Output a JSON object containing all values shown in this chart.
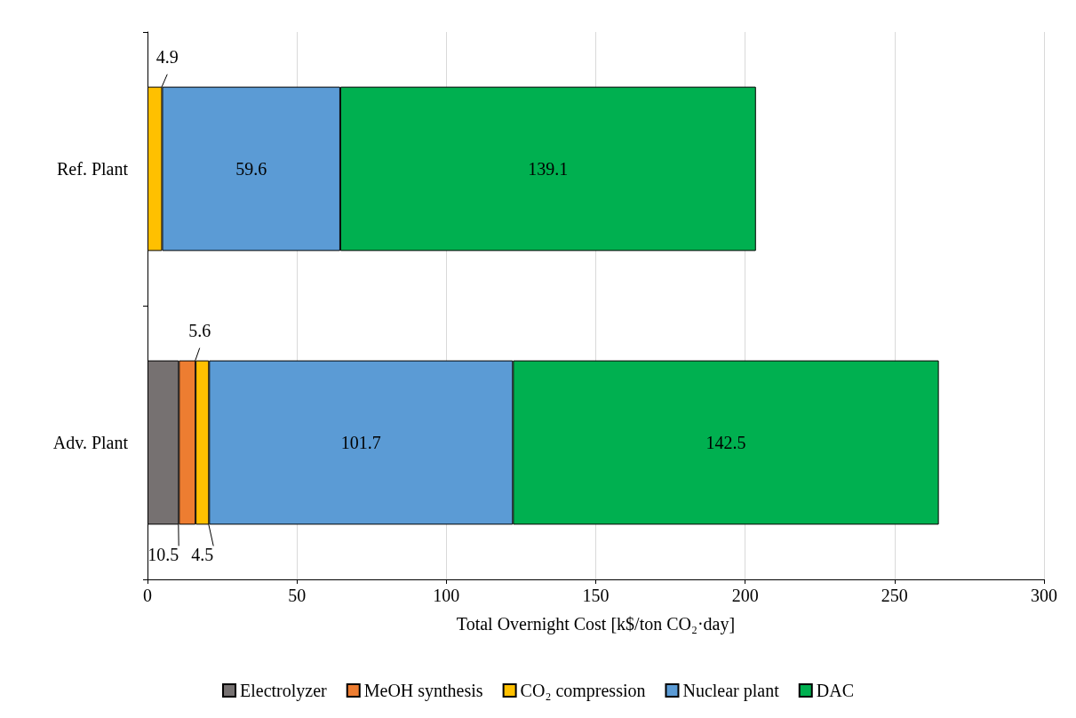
{
  "chart_data": {
    "type": "bar",
    "orientation": "horizontal",
    "stacked": true,
    "xlabel": "Total Overnight Cost [k$/ton CO₂·day]",
    "categories": [
      "Ref. Plant",
      "Adv. Plant"
    ],
    "series": [
      {
        "name": "Electrolyzer",
        "color": "#767171",
        "values": [
          null,
          10.5
        ]
      },
      {
        "name": "MeOH synthesis",
        "color": "#ed7d31",
        "values": [
          null,
          5.6
        ]
      },
      {
        "name": "CO₂ compression",
        "color": "#ffc000",
        "values": [
          4.9,
          4.5
        ]
      },
      {
        "name": "Nuclear plant",
        "color": "#5b9bd5",
        "values": [
          59.6,
          101.7
        ]
      },
      {
        "name": "DAC",
        "color": "#00b050",
        "values": [
          139.1,
          142.5
        ]
      }
    ],
    "xlim": [
      0,
      300
    ],
    "xticks": [
      0,
      50,
      100,
      150,
      200,
      250,
      300
    ],
    "grid": "x",
    "legend": "bottom",
    "data_labels": true
  }
}
